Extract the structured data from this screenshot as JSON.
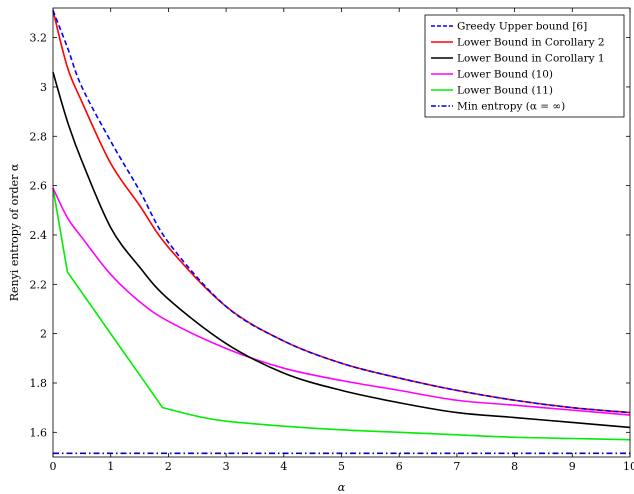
{
  "chart_data": {
    "type": "line",
    "xlabel": "α",
    "ylabel": "Renyi entropy of order α",
    "xlim": [
      0,
      10
    ],
    "ylim": [
      1.5,
      3.32
    ],
    "x_ticks": [
      0,
      1,
      2,
      3,
      4,
      5,
      6,
      7,
      8,
      9,
      10
    ],
    "x_tick_labels": [
      "0",
      "1",
      "2",
      "3",
      "4",
      "5",
      "6",
      "7",
      "8",
      "9",
      "10"
    ],
    "y_ticks": [
      1.6,
      1.8,
      2.0,
      2.2,
      2.4,
      2.6,
      2.8,
      3.0,
      3.2
    ],
    "y_tick_labels": [
      "1.6",
      "1.8",
      "2",
      "2.2",
      "2.4",
      "2.6",
      "2.8",
      "3",
      "3.2"
    ],
    "grid": false,
    "legend_position": "top-right",
    "series": [
      {
        "name": "Greedy Upper bound  [6]",
        "color": "#0000ff",
        "dash": "dashed",
        "x": [
          0,
          0.25,
          0.5,
          1,
          1.5,
          2,
          3,
          4,
          5,
          6,
          7,
          8,
          9,
          10
        ],
        "y": [
          3.31,
          3.16,
          3.0,
          2.78,
          2.58,
          2.37,
          2.11,
          1.97,
          1.88,
          1.82,
          1.77,
          1.73,
          1.7,
          1.68
        ]
      },
      {
        "name": "Lower Bound in Corollary 2",
        "color": "#ff0000",
        "dash": "solid",
        "x": [
          0,
          0.25,
          0.5,
          1,
          1.5,
          2,
          3,
          4,
          5,
          6,
          7,
          8,
          9,
          10
        ],
        "y": [
          3.31,
          3.08,
          2.94,
          2.69,
          2.52,
          2.35,
          2.11,
          1.97,
          1.88,
          1.82,
          1.77,
          1.73,
          1.7,
          1.68
        ]
      },
      {
        "name": "Lower Bound in Corollary 1",
        "color": "#000000",
        "dash": "solid",
        "x": [
          0,
          0.25,
          0.5,
          1,
          1.5,
          2,
          3,
          4,
          5,
          6,
          7,
          8,
          9,
          10
        ],
        "y": [
          3.06,
          2.86,
          2.7,
          2.43,
          2.27,
          2.14,
          1.96,
          1.84,
          1.77,
          1.72,
          1.68,
          1.66,
          1.64,
          1.62
        ]
      },
      {
        "name": "Lower Bound (10)",
        "color": "#ff00ff",
        "dash": "solid",
        "x": [
          0,
          0.25,
          0.5,
          1,
          1.5,
          2,
          3,
          4,
          5,
          6,
          7,
          8,
          9,
          10
        ],
        "y": [
          2.59,
          2.47,
          2.39,
          2.24,
          2.13,
          2.05,
          1.94,
          1.86,
          1.81,
          1.77,
          1.73,
          1.71,
          1.69,
          1.67
        ]
      },
      {
        "name": "Lower Bound (11)",
        "color": "#00ee00",
        "dash": "solid",
        "x": [
          0,
          0.25,
          1.9,
          2.5,
          3,
          4,
          5,
          6,
          7,
          8,
          9,
          10
        ],
        "y": [
          2.59,
          2.25,
          1.7,
          1.665,
          1.645,
          1.625,
          1.61,
          1.6,
          1.59,
          1.58,
          1.575,
          1.57
        ]
      },
      {
        "name": "Min entropy (α = ∞)",
        "color": "#0000cc",
        "dash": "dashdot",
        "x": [
          0,
          10
        ],
        "y": [
          1.515,
          1.515
        ]
      }
    ]
  }
}
